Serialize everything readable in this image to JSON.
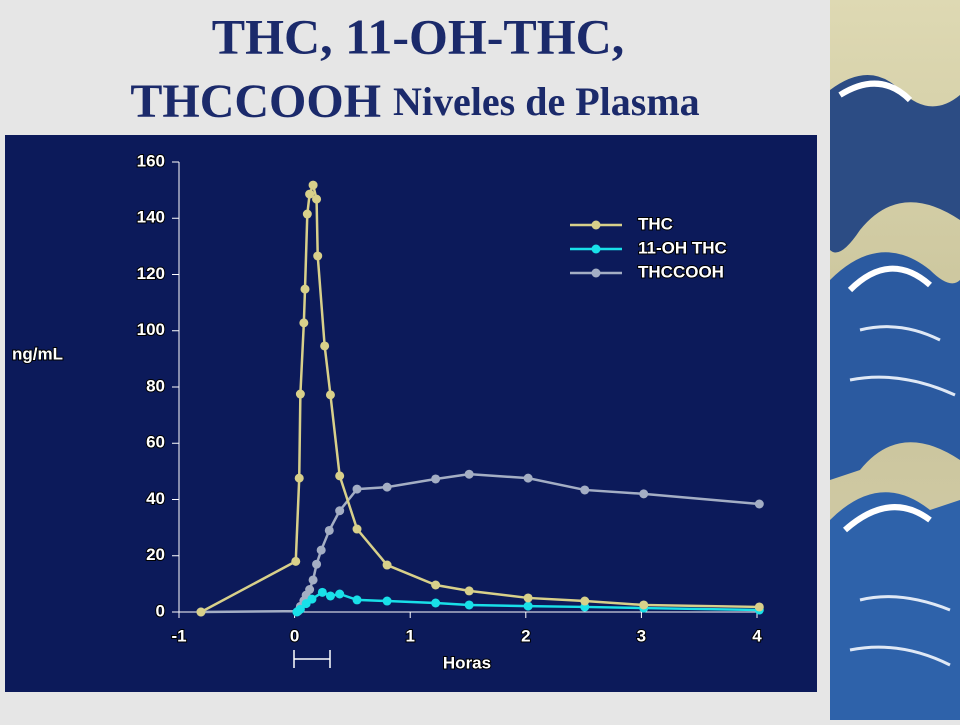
{
  "slide": {
    "title_lines": [
      "THC, 11-OH-THC,",
      "THCCOOH",
      "Niveles de Plasma"
    ]
  },
  "chart_data": {
    "type": "line",
    "y_label": "ng/mL",
    "x_label": "Horas",
    "xlim": [
      -1,
      4
    ],
    "xticks": [
      -1,
      0,
      1,
      2,
      3,
      4
    ],
    "ylim": [
      0,
      160
    ],
    "yticks": [
      0,
      20,
      40,
      60,
      80,
      100,
      120,
      140,
      160
    ],
    "legend": "top-right",
    "series": [
      {
        "name": "THC",
        "color": "#d8d08a",
        "x": [
          -0.81,
          0.01,
          0.04,
          0.05,
          0.08,
          0.09,
          0.11,
          0.13,
          0.16,
          0.19,
          0.2,
          0.26,
          0.31,
          0.39,
          0.54,
          0.8,
          1.22,
          1.51,
          2.02,
          2.51,
          3.02,
          4.02
        ],
        "values": [
          0,
          18,
          47.6,
          77.5,
          102.8,
          114.8,
          141.5,
          148.6,
          151.8,
          146.8,
          126.6,
          94.6,
          77.2,
          48.4,
          29.5,
          16.7,
          9.6,
          7.5,
          5,
          3.9,
          2.5,
          1.8
        ]
      },
      {
        "name": "11-OH THC",
        "color": "#19e0e8",
        "x": [
          0.02,
          0.05,
          0.1,
          0.15,
          0.24,
          0.31,
          0.39,
          0.54,
          0.8,
          1.22,
          1.51,
          2.02,
          2.51,
          3.02,
          4.02
        ],
        "values": [
          0,
          1,
          3,
          4.6,
          7,
          5.7,
          6.4,
          4.3,
          3.9,
          3.2,
          2.5,
          2.1,
          1.8,
          1.4,
          0.7
        ]
      },
      {
        "name": "THCCOOH",
        "color": "#a4aec4",
        "x": [
          -0.81,
          0.03,
          0.05,
          0.08,
          0.1,
          0.13,
          0.16,
          0.19,
          0.23,
          0.3,
          0.39,
          0.54,
          0.8,
          1.22,
          1.51,
          2.02,
          2.51,
          3.02,
          4.02
        ],
        "values": [
          0,
          0.3,
          2,
          4,
          6,
          8,
          11.4,
          17,
          22,
          29,
          36,
          43.7,
          44.4,
          47.3,
          49,
          47.6,
          43.4,
          42,
          38.4
        ]
      }
    ]
  }
}
